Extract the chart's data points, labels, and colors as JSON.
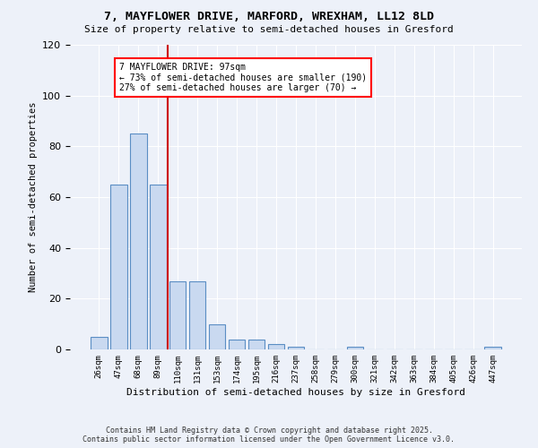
{
  "title1": "7, MAYFLOWER DRIVE, MARFORD, WREXHAM, LL12 8LD",
  "title2": "Size of property relative to semi-detached houses in Gresford",
  "xlabel": "Distribution of semi-detached houses by size in Gresford",
  "ylabel": "Number of semi-detached properties",
  "categories": [
    "26sqm",
    "47sqm",
    "68sqm",
    "89sqm",
    "110sqm",
    "131sqm",
    "153sqm",
    "174sqm",
    "195sqm",
    "216sqm",
    "237sqm",
    "258sqm",
    "279sqm",
    "300sqm",
    "321sqm",
    "342sqm",
    "363sqm",
    "384sqm",
    "405sqm",
    "426sqm",
    "447sqm"
  ],
  "values": [
    5,
    65,
    85,
    65,
    27,
    27,
    10,
    4,
    4,
    2,
    1,
    0,
    0,
    1,
    0,
    0,
    0,
    0,
    0,
    0,
    1
  ],
  "bar_color": "#c9d9f0",
  "bar_edge_color": "#5b8ec4",
  "vline_color": "#cc0000",
  "annotation_title": "7 MAYFLOWER DRIVE: 97sqm",
  "annotation_line2": "← 73% of semi-detached houses are smaller (190)",
  "annotation_line3": "27% of semi-detached houses are larger (70) →",
  "annotation_edge_color": "red",
  "ylim": [
    0,
    120
  ],
  "yticks": [
    0,
    20,
    40,
    60,
    80,
    100,
    120
  ],
  "bg_color": "#edf1f9",
  "plot_bg_color": "#edf1f9",
  "footer1": "Contains HM Land Registry data © Crown copyright and database right 2025.",
  "footer2": "Contains public sector information licensed under the Open Government Licence v3.0."
}
